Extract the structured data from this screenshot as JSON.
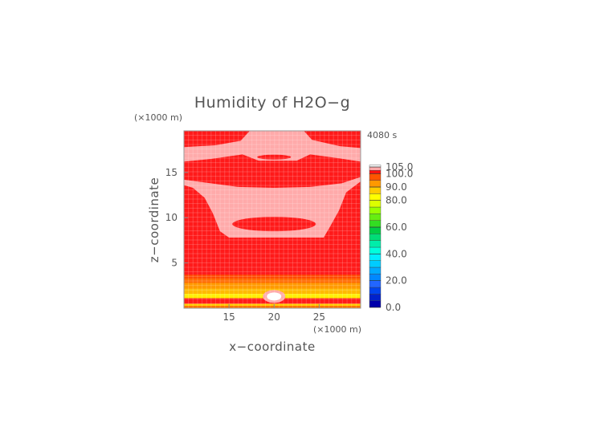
{
  "chart_data": {
    "type": "heatmap",
    "title": "Humidity of H2O−g",
    "time_label": "4080 s",
    "xlabel": "x−coordinate",
    "ylabel": "z−coordinate",
    "x_unit": "(×1000 m)",
    "z_unit": "(×1000 m)",
    "xlim": [
      10,
      29.6
    ],
    "ylim": [
      0,
      19.6
    ],
    "x_ticks": [
      15,
      20,
      25
    ],
    "y_ticks": [
      5,
      10,
      15
    ],
    "grid_cells": {
      "nx": 39,
      "nz": 39
    },
    "colorbar": {
      "range": [
        0,
        105
      ],
      "tick_values": [
        0,
        20,
        40,
        60,
        80,
        90,
        100,
        105
      ],
      "tick_labels": [
        "0.0",
        "20.0",
        "40.0",
        "60.0",
        "80.0",
        "90.0",
        "100.0",
        "105.0"
      ],
      "levels": [
        {
          "from": 0,
          "to": 5,
          "color": "#0000aa"
        },
        {
          "from": 5,
          "to": 10,
          "color": "#0022cc"
        },
        {
          "from": 10,
          "to": 15,
          "color": "#0044ee"
        },
        {
          "from": 15,
          "to": 20,
          "color": "#2266ff"
        },
        {
          "from": 20,
          "to": 25,
          "color": "#0088ff"
        },
        {
          "from": 25,
          "to": 30,
          "color": "#00aaff"
        },
        {
          "from": 30,
          "to": 35,
          "color": "#00ccff"
        },
        {
          "from": 35,
          "to": 40,
          "color": "#00eeff"
        },
        {
          "from": 40,
          "to": 45,
          "color": "#00ffdd"
        },
        {
          "from": 45,
          "to": 50,
          "color": "#00eeaa"
        },
        {
          "from": 50,
          "to": 55,
          "color": "#00dd77"
        },
        {
          "from": 55,
          "to": 60,
          "color": "#00cc44"
        },
        {
          "from": 60,
          "to": 65,
          "color": "#33dd22"
        },
        {
          "from": 65,
          "to": 70,
          "color": "#66ee11"
        },
        {
          "from": 70,
          "to": 75,
          "color": "#99ff00"
        },
        {
          "from": 75,
          "to": 80,
          "color": "#ddff00"
        },
        {
          "from": 80,
          "to": 85,
          "color": "#ffff00"
        },
        {
          "from": 85,
          "to": 90,
          "color": "#ffcc00"
        },
        {
          "from": 90,
          "to": 95,
          "color": "#ff9900"
        },
        {
          "from": 95,
          "to": 100,
          "color": "#ff5500"
        },
        {
          "from": 100,
          "to": 102.5,
          "color": "#ff1111"
        },
        {
          "from": 102.5,
          "to": 105,
          "color": "#ffaaaa"
        },
        {
          "from": 105,
          "to": 110,
          "color": "#ffffff"
        }
      ]
    },
    "field_regions": [
      {
        "name": "background",
        "value": 101,
        "color": "#ff1a1a"
      },
      {
        "name": "upper-saturated-cap",
        "value": 104,
        "color": "#ffaaaa"
      },
      {
        "name": "middle-saturated-bowl",
        "value": 104,
        "color": "#ffaaaa"
      },
      {
        "name": "low-level-gradient",
        "values": [
          99,
          96,
          93,
          88,
          84,
          96,
          99
        ],
        "colors": [
          "#ff4a00",
          "#ff6a00",
          "#ff9900",
          "#ffbb00",
          "#ffee00",
          "#ffcc00",
          "#ff7700"
        ]
      },
      {
        "name": "surface-bubble",
        "value": 106,
        "color": "#ffffff"
      }
    ]
  }
}
